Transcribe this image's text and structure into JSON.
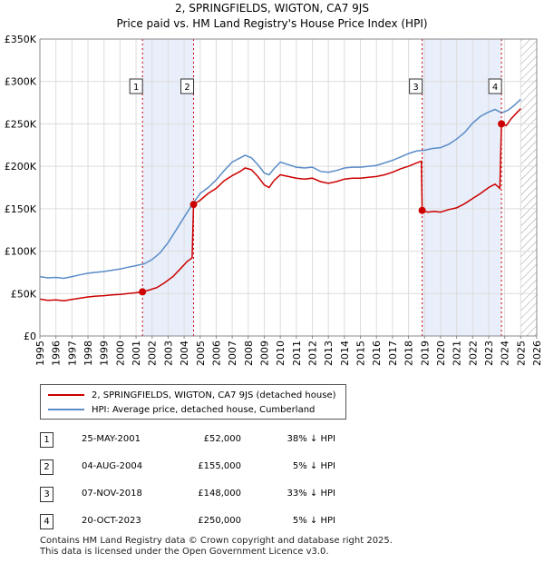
{
  "chart_data": {
    "type": "line",
    "title": "2, SPRINGFIELDS, WIGTON, CA7 9JS",
    "subtitle": "Price paid vs. HM Land Registry's House Price Index (HPI)",
    "xlabel": "",
    "ylabel": "",
    "xlim": [
      1995,
      2026
    ],
    "ylim": [
      0,
      350000
    ],
    "x_ticks": [
      "1995",
      "1996",
      "1997",
      "1998",
      "1999",
      "2000",
      "2001",
      "2002",
      "2003",
      "2004",
      "2005",
      "2006",
      "2007",
      "2008",
      "2009",
      "2010",
      "2011",
      "2012",
      "2013",
      "2014",
      "2015",
      "2016",
      "2017",
      "2018",
      "2019",
      "2020",
      "2021",
      "2022",
      "2023",
      "2024",
      "2025",
      "2026"
    ],
    "y_ticks": [
      {
        "value": 0,
        "label": "£0"
      },
      {
        "value": 50000,
        "label": "£50K"
      },
      {
        "value": 100000,
        "label": "£100K"
      },
      {
        "value": 150000,
        "label": "£150K"
      },
      {
        "value": 200000,
        "label": "£200K"
      },
      {
        "value": 250000,
        "label": "£250K"
      },
      {
        "value": 300000,
        "label": "£300K"
      },
      {
        "value": 350000,
        "label": "£350K"
      }
    ],
    "grid": true,
    "future_hatch_start": 2025.0,
    "shaded_periods": [
      [
        2001.4,
        2004.6
      ],
      [
        2018.85,
        2023.8
      ]
    ],
    "series": [
      {
        "name": "2, SPRINGFIELDS, WIGTON, CA7 9JS (detached house)",
        "color": "#cc0000",
        "points": [
          [
            1995.0,
            43500
          ],
          [
            1995.5,
            42000
          ],
          [
            1996.0,
            42500
          ],
          [
            1996.5,
            41500
          ],
          [
            1997.0,
            43000
          ],
          [
            1997.5,
            44500
          ],
          [
            1998.0,
            46000
          ],
          [
            1998.5,
            47000
          ],
          [
            1999.0,
            47500
          ],
          [
            1999.5,
            48500
          ],
          [
            2000.0,
            49000
          ],
          [
            2000.5,
            50000
          ],
          [
            2001.0,
            51000
          ],
          [
            2001.4,
            52000
          ],
          [
            2001.8,
            54000
          ],
          [
            2002.3,
            57000
          ],
          [
            2002.8,
            63000
          ],
          [
            2003.3,
            70000
          ],
          [
            2003.8,
            80000
          ],
          [
            2004.2,
            88000
          ],
          [
            2004.5,
            92000
          ],
          [
            2004.59,
            155000
          ],
          [
            2005.0,
            160000
          ],
          [
            2005.5,
            168000
          ],
          [
            2006.0,
            174000
          ],
          [
            2006.5,
            183000
          ],
          [
            2007.0,
            189000
          ],
          [
            2007.5,
            194000
          ],
          [
            2007.8,
            198000
          ],
          [
            2008.2,
            196000
          ],
          [
            2008.6,
            188000
          ],
          [
            2009.0,
            178000
          ],
          [
            2009.3,
            175000
          ],
          [
            2009.6,
            183000
          ],
          [
            2010.0,
            190000
          ],
          [
            2010.5,
            188000
          ],
          [
            2011.0,
            186000
          ],
          [
            2011.5,
            185000
          ],
          [
            2012.0,
            186000
          ],
          [
            2012.5,
            182000
          ],
          [
            2013.0,
            180000
          ],
          [
            2013.5,
            182000
          ],
          [
            2014.0,
            185000
          ],
          [
            2014.5,
            186000
          ],
          [
            2015.0,
            186000
          ],
          [
            2015.5,
            187000
          ],
          [
            2016.0,
            188000
          ],
          [
            2016.5,
            190000
          ],
          [
            2017.0,
            193000
          ],
          [
            2017.5,
            197000
          ],
          [
            2018.0,
            200000
          ],
          [
            2018.5,
            204000
          ],
          [
            2018.8,
            206000
          ],
          [
            2018.85,
            148000
          ],
          [
            2019.2,
            146000
          ],
          [
            2019.6,
            147000
          ],
          [
            2020.0,
            146000
          ],
          [
            2020.5,
            149000
          ],
          [
            2021.0,
            151000
          ],
          [
            2021.5,
            156000
          ],
          [
            2022.0,
            162000
          ],
          [
            2022.5,
            168000
          ],
          [
            2023.0,
            175000
          ],
          [
            2023.4,
            179000
          ],
          [
            2023.7,
            174000
          ],
          [
            2023.8,
            250000
          ],
          [
            2024.1,
            248000
          ],
          [
            2024.4,
            256000
          ],
          [
            2024.7,
            262000
          ],
          [
            2025.0,
            268000
          ]
        ]
      },
      {
        "name": "HPI: Average price, detached house, Cumberland",
        "color": "#5b8cc8",
        "points": [
          [
            1995.0,
            70000
          ],
          [
            1995.5,
            68500
          ],
          [
            1996.0,
            69000
          ],
          [
            1996.5,
            68000
          ],
          [
            1997.0,
            70000
          ],
          [
            1997.5,
            72000
          ],
          [
            1998.0,
            74000
          ],
          [
            1998.5,
            75000
          ],
          [
            1999.0,
            76000
          ],
          [
            1999.5,
            77500
          ],
          [
            2000.0,
            79000
          ],
          [
            2000.5,
            81000
          ],
          [
            2001.0,
            83000
          ],
          [
            2001.5,
            85000
          ],
          [
            2002.0,
            90000
          ],
          [
            2002.5,
            98000
          ],
          [
            2003.0,
            110000
          ],
          [
            2003.5,
            125000
          ],
          [
            2004.0,
            140000
          ],
          [
            2004.5,
            155000
          ],
          [
            2005.0,
            168000
          ],
          [
            2005.5,
            175000
          ],
          [
            2006.0,
            184000
          ],
          [
            2006.5,
            195000
          ],
          [
            2007.0,
            205000
          ],
          [
            2007.5,
            210000
          ],
          [
            2007.8,
            213000
          ],
          [
            2008.2,
            210000
          ],
          [
            2008.6,
            202000
          ],
          [
            2009.0,
            192000
          ],
          [
            2009.3,
            190000
          ],
          [
            2009.6,
            197000
          ],
          [
            2010.0,
            205000
          ],
          [
            2010.5,
            202000
          ],
          [
            2011.0,
            199000
          ],
          [
            2011.5,
            198000
          ],
          [
            2012.0,
            199000
          ],
          [
            2012.5,
            194000
          ],
          [
            2013.0,
            193000
          ],
          [
            2013.5,
            195000
          ],
          [
            2014.0,
            198000
          ],
          [
            2014.5,
            199000
          ],
          [
            2015.0,
            199000
          ],
          [
            2015.5,
            200000
          ],
          [
            2016.0,
            201000
          ],
          [
            2016.5,
            204000
          ],
          [
            2017.0,
            207000
          ],
          [
            2017.5,
            211000
          ],
          [
            2018.0,
            215000
          ],
          [
            2018.5,
            218000
          ],
          [
            2019.0,
            219000
          ],
          [
            2019.5,
            221000
          ],
          [
            2020.0,
            222000
          ],
          [
            2020.5,
            226000
          ],
          [
            2021.0,
            232000
          ],
          [
            2021.5,
            240000
          ],
          [
            2022.0,
            251000
          ],
          [
            2022.5,
            259000
          ],
          [
            2023.0,
            264000
          ],
          [
            2023.4,
            267000
          ],
          [
            2023.8,
            263000
          ],
          [
            2024.2,
            266000
          ],
          [
            2024.6,
            272000
          ],
          [
            2025.0,
            279000
          ]
        ]
      }
    ],
    "annotations": [
      {
        "label": "1",
        "x": 2001.4,
        "y": 52000
      },
      {
        "label": "2",
        "x": 2004.59,
        "y": 155000
      },
      {
        "label": "3",
        "x": 2018.85,
        "y": 148000
      },
      {
        "label": "4",
        "x": 2023.8,
        "y": 250000
      }
    ]
  },
  "legend": {
    "items": [
      {
        "label": "2, SPRINGFIELDS, WIGTON, CA7 9JS (detached house)",
        "color": "#cc0000"
      },
      {
        "label": "HPI: Average price, detached house, Cumberland",
        "color": "#5b8cc8"
      }
    ]
  },
  "sales": [
    {
      "num": "1",
      "date": "25-MAY-2001",
      "price": "£52,000",
      "hpi": "38% ↓ HPI"
    },
    {
      "num": "2",
      "date": "04-AUG-2004",
      "price": "£155,000",
      "hpi": "5% ↓ HPI"
    },
    {
      "num": "3",
      "date": "07-NOV-2018",
      "price": "£148,000",
      "hpi": "33% ↓ HPI"
    },
    {
      "num": "4",
      "date": "20-OCT-2023",
      "price": "£250,000",
      "hpi": "5% ↓ HPI"
    }
  ],
  "footer": {
    "line1": "Contains HM Land Registry data © Crown copyright and database right 2025.",
    "line2": "This data is licensed under the Open Government Licence v3.0."
  }
}
